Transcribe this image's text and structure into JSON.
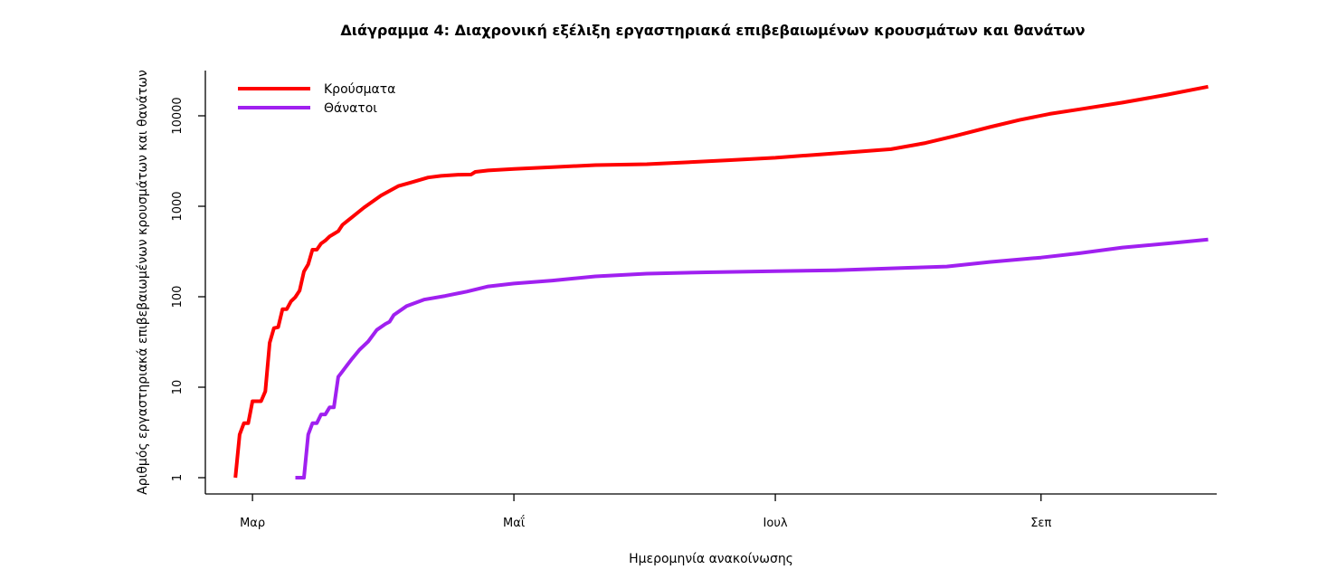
{
  "chart_data": {
    "type": "line",
    "title": "Διάγραμμα 4: Διαχρονική εξέλιξη εργαστηριακά επιβεβαιωμένων κρουσμάτων και θανάτων",
    "xlabel": "Ημερομηνία ανακοίνωσης",
    "ylabel": "Αριθμός εργαστηριακά επιβεβαιωμένων κρουσμάτων και θανάτων",
    "y_scale": "log",
    "ylim": [
      1,
      22000
    ],
    "xlim": [
      "2020-02-19",
      "2020-10-12"
    ],
    "x_ticks": [
      {
        "date": "2020-03-01",
        "label": "Μαρ"
      },
      {
        "date": "2020-05-01",
        "label": "Μαΐ"
      },
      {
        "date": "2020-07-01",
        "label": "Ιουλ"
      },
      {
        "date": "2020-09-01",
        "label": "Σεπ"
      }
    ],
    "y_ticks": [
      {
        "value": 1,
        "label": "1"
      },
      {
        "value": 10,
        "label": "10"
      },
      {
        "value": 100,
        "label": "100"
      },
      {
        "value": 1000,
        "label": "1000"
      },
      {
        "value": 10000,
        "label": "10000"
      }
    ],
    "legend_position": "top-left",
    "grid": false,
    "series": [
      {
        "name": "Κρούσματα",
        "color": "#ff0000",
        "points": [
          [
            "2020-02-26",
            1
          ],
          [
            "2020-02-27",
            3
          ],
          [
            "2020-02-28",
            4
          ],
          [
            "2020-02-29",
            4
          ],
          [
            "2020-03-01",
            7
          ],
          [
            "2020-03-03",
            7
          ],
          [
            "2020-03-04",
            9
          ],
          [
            "2020-03-05",
            31
          ],
          [
            "2020-03-06",
            45
          ],
          [
            "2020-03-07",
            46
          ],
          [
            "2020-03-08",
            73
          ],
          [
            "2020-03-09",
            73
          ],
          [
            "2020-03-10",
            89
          ],
          [
            "2020-03-11",
            99
          ],
          [
            "2020-03-12",
            117
          ],
          [
            "2020-03-13",
            190
          ],
          [
            "2020-03-14",
            228
          ],
          [
            "2020-03-15",
            331
          ],
          [
            "2020-03-16",
            331
          ],
          [
            "2020-03-17",
            387
          ],
          [
            "2020-03-18",
            418
          ],
          [
            "2020-03-19",
            464
          ],
          [
            "2020-03-20",
            495
          ],
          [
            "2020-03-21",
            530
          ],
          [
            "2020-03-22",
            624
          ],
          [
            "2020-03-24",
            743
          ],
          [
            "2020-03-27",
            966
          ],
          [
            "2020-03-31",
            1314
          ],
          [
            "2020-04-04",
            1673
          ],
          [
            "2020-04-07",
            1832
          ],
          [
            "2020-04-11",
            2081
          ],
          [
            "2020-04-14",
            2170
          ],
          [
            "2020-04-18",
            2235
          ],
          [
            "2020-04-21",
            2245
          ],
          [
            "2020-04-22",
            2401
          ],
          [
            "2020-04-25",
            2490
          ],
          [
            "2020-05-01",
            2591
          ],
          [
            "2020-05-10",
            2710
          ],
          [
            "2020-05-20",
            2850
          ],
          [
            "2020-06-01",
            2918
          ],
          [
            "2020-06-10",
            3058
          ],
          [
            "2020-06-20",
            3227
          ],
          [
            "2020-07-01",
            3432
          ],
          [
            "2020-07-10",
            3700
          ],
          [
            "2020-07-20",
            4007
          ],
          [
            "2020-07-28",
            4279
          ],
          [
            "2020-08-05",
            5000
          ],
          [
            "2020-08-12",
            6000
          ],
          [
            "2020-08-20",
            7500
          ],
          [
            "2020-08-27",
            9000
          ],
          [
            "2020-09-03",
            10500
          ],
          [
            "2020-09-10",
            11800
          ],
          [
            "2020-09-20",
            14000
          ],
          [
            "2020-09-30",
            17000
          ],
          [
            "2020-10-10",
            21000
          ]
        ]
      },
      {
        "name": "Θάνατοι",
        "color": "#a020f0",
        "points": [
          [
            "2020-03-11",
            1
          ],
          [
            "2020-03-13",
            1
          ],
          [
            "2020-03-14",
            3
          ],
          [
            "2020-03-15",
            4
          ],
          [
            "2020-03-16",
            4
          ],
          [
            "2020-03-17",
            5
          ],
          [
            "2020-03-18",
            5
          ],
          [
            "2020-03-19",
            6
          ],
          [
            "2020-03-20",
            6
          ],
          [
            "2020-03-21",
            13
          ],
          [
            "2020-03-22",
            15
          ],
          [
            "2020-03-24",
            20
          ],
          [
            "2020-03-26",
            26
          ],
          [
            "2020-03-28",
            32
          ],
          [
            "2020-03-30",
            43
          ],
          [
            "2020-04-01",
            50
          ],
          [
            "2020-04-02",
            53
          ],
          [
            "2020-04-03",
            63
          ],
          [
            "2020-04-06",
            79
          ],
          [
            "2020-04-10",
            93
          ],
          [
            "2020-04-15",
            102
          ],
          [
            "2020-04-20",
            114
          ],
          [
            "2020-04-25",
            130
          ],
          [
            "2020-05-01",
            140
          ],
          [
            "2020-05-10",
            151
          ],
          [
            "2020-05-20",
            168
          ],
          [
            "2020-06-01",
            180
          ],
          [
            "2020-06-15",
            186
          ],
          [
            "2020-07-01",
            192
          ],
          [
            "2020-07-15",
            196
          ],
          [
            "2020-08-01",
            209
          ],
          [
            "2020-08-10",
            216
          ],
          [
            "2020-08-20",
            242
          ],
          [
            "2020-09-01",
            271
          ],
          [
            "2020-09-10",
            303
          ],
          [
            "2020-09-20",
            350
          ],
          [
            "2020-10-01",
            390
          ],
          [
            "2020-10-10",
            430
          ]
        ]
      }
    ]
  }
}
